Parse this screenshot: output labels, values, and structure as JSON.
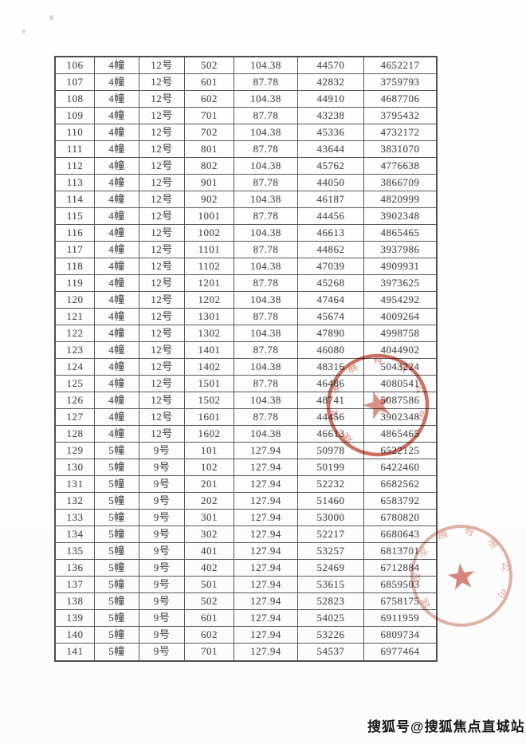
{
  "table": {
    "rows": [
      [
        "106",
        "4幢",
        "12号",
        "502",
        "104.38",
        "44570",
        "4652217"
      ],
      [
        "107",
        "4幢",
        "12号",
        "601",
        "87.78",
        "42832",
        "3759793"
      ],
      [
        "108",
        "4幢",
        "12号",
        "602",
        "104.38",
        "44910",
        "4687706"
      ],
      [
        "109",
        "4幢",
        "12号",
        "701",
        "87.78",
        "43238",
        "3795432"
      ],
      [
        "110",
        "4幢",
        "12号",
        "702",
        "104.38",
        "45336",
        "4732172"
      ],
      [
        "111",
        "4幢",
        "12号",
        "801",
        "87.78",
        "43644",
        "3831070"
      ],
      [
        "112",
        "4幢",
        "12号",
        "802",
        "104.38",
        "45762",
        "4776638"
      ],
      [
        "113",
        "4幢",
        "12号",
        "901",
        "87.78",
        "44050",
        "3866709"
      ],
      [
        "114",
        "4幢",
        "12号",
        "902",
        "104.38",
        "46187",
        "4820999"
      ],
      [
        "115",
        "4幢",
        "12号",
        "1001",
        "87.78",
        "44456",
        "3902348"
      ],
      [
        "116",
        "4幢",
        "12号",
        "1002",
        "104.38",
        "46613",
        "4865465"
      ],
      [
        "117",
        "4幢",
        "12号",
        "1101",
        "87.78",
        "44862",
        "3937986"
      ],
      [
        "118",
        "4幢",
        "12号",
        "1102",
        "104.38",
        "47039",
        "4909931"
      ],
      [
        "119",
        "4幢",
        "12号",
        "1201",
        "87.78",
        "45268",
        "3973625"
      ],
      [
        "120",
        "4幢",
        "12号",
        "1202",
        "104.38",
        "47464",
        "4954292"
      ],
      [
        "121",
        "4幢",
        "12号",
        "1301",
        "87.78",
        "45674",
        "4009264"
      ],
      [
        "122",
        "4幢",
        "12号",
        "1302",
        "104.38",
        "47890",
        "4998758"
      ],
      [
        "123",
        "4幢",
        "12号",
        "1401",
        "87.78",
        "46080",
        "4044902"
      ],
      [
        "124",
        "4幢",
        "12号",
        "1402",
        "104.38",
        "48316",
        "5043224"
      ],
      [
        "125",
        "4幢",
        "12号",
        "1501",
        "87.78",
        "46486",
        "4080541"
      ],
      [
        "126",
        "4幢",
        "12号",
        "1502",
        "104.38",
        "48741",
        "5087586"
      ],
      [
        "127",
        "4幢",
        "12号",
        "1601",
        "87.78",
        "44456",
        "3902348"
      ],
      [
        "128",
        "4幢",
        "12号",
        "1602",
        "104.38",
        "46613",
        "4865465"
      ],
      [
        "129",
        "5幢",
        "9号",
        "101",
        "127.94",
        "50978",
        "6522125"
      ],
      [
        "130",
        "5幢",
        "9号",
        "102",
        "127.94",
        "50199",
        "6422460"
      ],
      [
        "131",
        "5幢",
        "9号",
        "201",
        "127.94",
        "52232",
        "6682562"
      ],
      [
        "132",
        "5幢",
        "9号",
        "202",
        "127.94",
        "51460",
        "6583792"
      ],
      [
        "133",
        "5幢",
        "9号",
        "301",
        "127.94",
        "53000",
        "6780820"
      ],
      [
        "134",
        "5幢",
        "9号",
        "302",
        "127.94",
        "52217",
        "6680643"
      ],
      [
        "135",
        "5幢",
        "9号",
        "401",
        "127.94",
        "53257",
        "6813701"
      ],
      [
        "136",
        "5幢",
        "9号",
        "402",
        "127.94",
        "52469",
        "6712884"
      ],
      [
        "137",
        "5幢",
        "9号",
        "501",
        "127.94",
        "53615",
        "6859503"
      ],
      [
        "138",
        "5幢",
        "9号",
        "502",
        "127.94",
        "52823",
        "6758175"
      ],
      [
        "139",
        "5幢",
        "9号",
        "601",
        "127.94",
        "54025",
        "6911959"
      ],
      [
        "140",
        "5幢",
        "9号",
        "602",
        "127.94",
        "53226",
        "6809734"
      ],
      [
        "141",
        "5幢",
        "9号",
        "701",
        "127.94",
        "54537",
        "6977464"
      ]
    ]
  },
  "seals": {
    "upper": {
      "ring_text": "建设发展有限公司",
      "star": "★",
      "ring_color": "#c2523f",
      "text_color": "#c4584a",
      "star_color": "#cf6a5a"
    },
    "lower": {
      "ring_text": "建设发展有限公司",
      "star": "★",
      "ring_color": "#dda699",
      "text_color": "#d4988b",
      "star_color": "#c85a4b"
    }
  },
  "watermark": {
    "text": "搜狐号@搜狐焦点直城站"
  }
}
